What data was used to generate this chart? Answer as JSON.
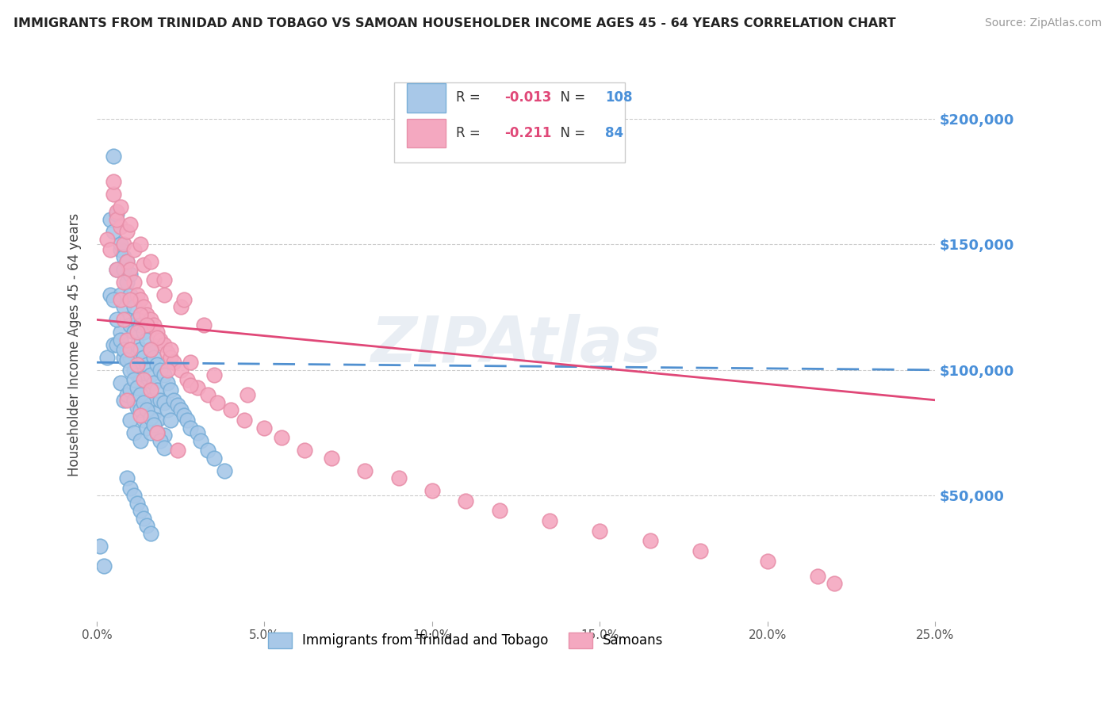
{
  "title": "IMMIGRANTS FROM TRINIDAD AND TOBAGO VS SAMOAN HOUSEHOLDER INCOME AGES 45 - 64 YEARS CORRELATION CHART",
  "source": "Source: ZipAtlas.com",
  "ylabel": "Householder Income Ages 45 - 64 years",
  "xmin": 0.0,
  "xmax": 0.25,
  "ymin": 0,
  "ymax": 220000,
  "ytick_labels": [
    "$50,000",
    "$100,000",
    "$150,000",
    "$200,000"
  ],
  "ytick_values": [
    50000,
    100000,
    150000,
    200000
  ],
  "legend_label1": "Immigrants from Trinidad and Tobago",
  "legend_label2": "Samoans",
  "R1": "-0.013",
  "N1": "108",
  "R2": "-0.211",
  "N2": "84",
  "color1": "#a8c8e8",
  "color2": "#f4a8c0",
  "line_color1": "#5090d0",
  "line_color2": "#e04878",
  "watermark": "ZIPAtlas",
  "blue_scatter_x": [
    0.001,
    0.002,
    0.003,
    0.004,
    0.004,
    0.005,
    0.005,
    0.005,
    0.006,
    0.006,
    0.006,
    0.007,
    0.007,
    0.007,
    0.007,
    0.008,
    0.008,
    0.008,
    0.008,
    0.009,
    0.009,
    0.009,
    0.009,
    0.01,
    0.01,
    0.01,
    0.01,
    0.01,
    0.011,
    0.011,
    0.011,
    0.011,
    0.011,
    0.012,
    0.012,
    0.012,
    0.012,
    0.013,
    0.013,
    0.013,
    0.013,
    0.013,
    0.014,
    0.014,
    0.014,
    0.014,
    0.015,
    0.015,
    0.015,
    0.015,
    0.016,
    0.016,
    0.016,
    0.016,
    0.017,
    0.017,
    0.017,
    0.018,
    0.018,
    0.018,
    0.019,
    0.019,
    0.02,
    0.02,
    0.02,
    0.021,
    0.021,
    0.022,
    0.022,
    0.023,
    0.024,
    0.025,
    0.026,
    0.027,
    0.028,
    0.03,
    0.031,
    0.033,
    0.035,
    0.038,
    0.005,
    0.006,
    0.007,
    0.008,
    0.009,
    0.01,
    0.011,
    0.012,
    0.013,
    0.014,
    0.015,
    0.016,
    0.017,
    0.018,
    0.019,
    0.02,
    0.009,
    0.01,
    0.011,
    0.012,
    0.013,
    0.014,
    0.015,
    0.016,
    0.007,
    0.008,
    0.009,
    0.01
  ],
  "blue_scatter_y": [
    30000,
    22000,
    105000,
    160000,
    130000,
    185000,
    155000,
    110000,
    162000,
    140000,
    110000,
    148000,
    130000,
    115000,
    95000,
    140000,
    125000,
    105000,
    88000,
    135000,
    120000,
    108000,
    90000,
    130000,
    118000,
    105000,
    92000,
    80000,
    125000,
    115000,
    100000,
    88000,
    75000,
    120000,
    110000,
    98000,
    85000,
    118000,
    108000,
    96000,
    84000,
    72000,
    115000,
    105000,
    93000,
    80000,
    112000,
    102000,
    90000,
    77000,
    108000,
    98000,
    88000,
    75000,
    105000,
    95000,
    83000,
    102000,
    92000,
    80000,
    100000,
    88000,
    98000,
    87000,
    74000,
    95000,
    84000,
    92000,
    80000,
    88000,
    86000,
    84000,
    82000,
    80000,
    77000,
    75000,
    72000,
    68000,
    65000,
    60000,
    128000,
    120000,
    112000,
    108000,
    104000,
    100000,
    96000,
    93000,
    90000,
    87000,
    84000,
    81000,
    78000,
    75000,
    72000,
    69000,
    57000,
    53000,
    50000,
    47000,
    44000,
    41000,
    38000,
    35000,
    150000,
    145000,
    143000,
    138000
  ],
  "pink_scatter_x": [
    0.003,
    0.004,
    0.005,
    0.006,
    0.007,
    0.007,
    0.008,
    0.009,
    0.009,
    0.01,
    0.01,
    0.011,
    0.012,
    0.012,
    0.013,
    0.014,
    0.014,
    0.015,
    0.016,
    0.016,
    0.017,
    0.018,
    0.019,
    0.02,
    0.021,
    0.022,
    0.023,
    0.025,
    0.027,
    0.03,
    0.033,
    0.036,
    0.04,
    0.044,
    0.05,
    0.055,
    0.062,
    0.07,
    0.08,
    0.09,
    0.1,
    0.11,
    0.12,
    0.135,
    0.15,
    0.165,
    0.18,
    0.2,
    0.215,
    0.22,
    0.006,
    0.008,
    0.01,
    0.013,
    0.015,
    0.018,
    0.022,
    0.028,
    0.035,
    0.045,
    0.006,
    0.009,
    0.011,
    0.014,
    0.017,
    0.02,
    0.025,
    0.032,
    0.005,
    0.007,
    0.01,
    0.013,
    0.016,
    0.02,
    0.026,
    0.008,
    0.012,
    0.016,
    0.021,
    0.028,
    0.009,
    0.013,
    0.018,
    0.024
  ],
  "pink_scatter_y": [
    152000,
    148000,
    170000,
    163000,
    157000,
    128000,
    150000,
    143000,
    112000,
    140000,
    108000,
    135000,
    130000,
    102000,
    128000,
    125000,
    96000,
    122000,
    120000,
    92000,
    118000,
    115000,
    112000,
    110000,
    107000,
    105000,
    103000,
    100000,
    96000,
    93000,
    90000,
    87000,
    84000,
    80000,
    77000,
    73000,
    68000,
    65000,
    60000,
    57000,
    52000,
    48000,
    44000,
    40000,
    36000,
    32000,
    28000,
    24000,
    18000,
    15000,
    140000,
    135000,
    128000,
    122000,
    118000,
    113000,
    108000,
    103000,
    98000,
    90000,
    160000,
    155000,
    148000,
    142000,
    136000,
    130000,
    125000,
    118000,
    175000,
    165000,
    158000,
    150000,
    143000,
    136000,
    128000,
    120000,
    115000,
    108000,
    100000,
    94000,
    88000,
    82000,
    75000,
    68000
  ]
}
